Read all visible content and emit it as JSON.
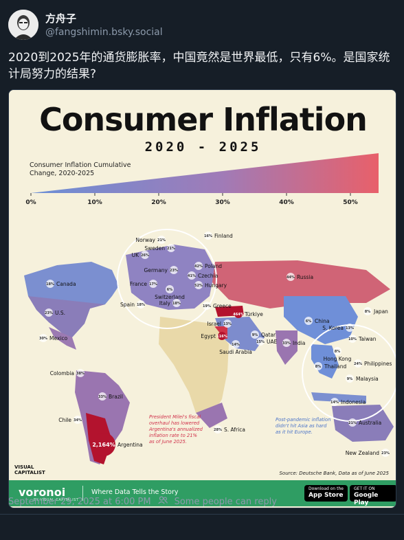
{
  "post": {
    "author_name": "方舟子",
    "author_handle": "@fangshimin.bsky.social",
    "text": "2020到2025年的通货膨胀率，中国竟然是世界最低，只有6%。是国家统计局努力的结果?",
    "timestamp": "September 29, 2025 at 6:00 PM",
    "reply_setting": "Some people can reply",
    "people_icon": "people-icon"
  },
  "infographic": {
    "title": "Consumer Inflation",
    "years": "2020 - 2025",
    "legend_title_line1": "Consumer Inflation Cumulative",
    "legend_title_line2": "Change, 2020-2025",
    "legend_ticks": [
      "0%",
      "10%",
      "20%",
      "30%",
      "40%",
      "50%"
    ],
    "note_argentina": [
      "President Milei's fiscal",
      "overhaul has lowered",
      "Argentina's annualized",
      "inflation rate to 21%",
      "as of June 2025."
    ],
    "note_asia": [
      "Post-pandemic inflation",
      "didn't hit Asia as hard",
      "as it hit Europe."
    ],
    "logo_line1": "VISUAL",
    "logo_line2": "CAPITALIST",
    "source": "Source: Deutsche Bank, Data as of June 2025",
    "colors": {
      "low": "#6b8fd6",
      "mid": "#9a7bb5",
      "high": "#e05a66",
      "extreme": "#b3132e"
    },
    "countries": [
      {
        "name": "Finland",
        "value": "16%"
      },
      {
        "name": "Norway",
        "value": "21%"
      },
      {
        "name": "Sweden",
        "value": "21%"
      },
      {
        "name": "UK",
        "value": "26%"
      },
      {
        "name": "Germany",
        "value": "23%"
      },
      {
        "name": "Poland",
        "value": "42%"
      },
      {
        "name": "Czechia",
        "value": "41%"
      },
      {
        "name": "Hungary",
        "value": "52%"
      },
      {
        "name": "France",
        "value": "17%"
      },
      {
        "name": "Switzerland",
        "value": "6%"
      },
      {
        "name": "Spain",
        "value": "18%"
      },
      {
        "name": "Italy",
        "value": "18%"
      },
      {
        "name": "Greece",
        "value": "19%"
      },
      {
        "name": "Canada",
        "value": "18%"
      },
      {
        "name": "U.S.",
        "value": "23%"
      },
      {
        "name": "Mexico",
        "value": "30%"
      },
      {
        "name": "Russia",
        "value": "44%"
      },
      {
        "name": "Türkiye",
        "value": "464%"
      },
      {
        "name": "Israel",
        "value": "13%"
      },
      {
        "name": "Egypt",
        "value": "116%"
      },
      {
        "name": "Saudi Arabia",
        "value": "14%"
      },
      {
        "name": "Qatar",
        "value": "9%"
      },
      {
        "name": "UAE",
        "value": "15%"
      },
      {
        "name": "China",
        "value": "6%"
      },
      {
        "name": "Japan",
        "value": "8%"
      },
      {
        "name": "S. Korea",
        "value": "13%"
      },
      {
        "name": "Taiwan",
        "value": "10%"
      },
      {
        "name": "Hong Kong",
        "value": "8%"
      },
      {
        "name": "India",
        "value": "33%"
      },
      {
        "name": "Thailand",
        "value": "8%"
      },
      {
        "name": "Philippines",
        "value": "24%"
      },
      {
        "name": "Malaysia",
        "value": "9%"
      },
      {
        "name": "Indonesia",
        "value": "14%"
      },
      {
        "name": "Colombia",
        "value": "38%"
      },
      {
        "name": "Brazil",
        "value": "33%"
      },
      {
        "name": "Chile",
        "value": "34%"
      },
      {
        "name": "Argentina",
        "value": "2,164%"
      },
      {
        "name": "S. Africa",
        "value": "28%"
      },
      {
        "name": "Australia",
        "value": "21%"
      },
      {
        "name": "New Zealand",
        "value": "23%"
      }
    ]
  },
  "promo": {
    "brand": "voronoi",
    "brand_sub": "BY VISUAL CAPITALIST",
    "tagline": "Where Data Tells the Story",
    "appstore_small": "Download on the",
    "appstore_big": "App Store",
    "googleplay_small": "GET IT ON",
    "googleplay_big": "Google Play"
  }
}
